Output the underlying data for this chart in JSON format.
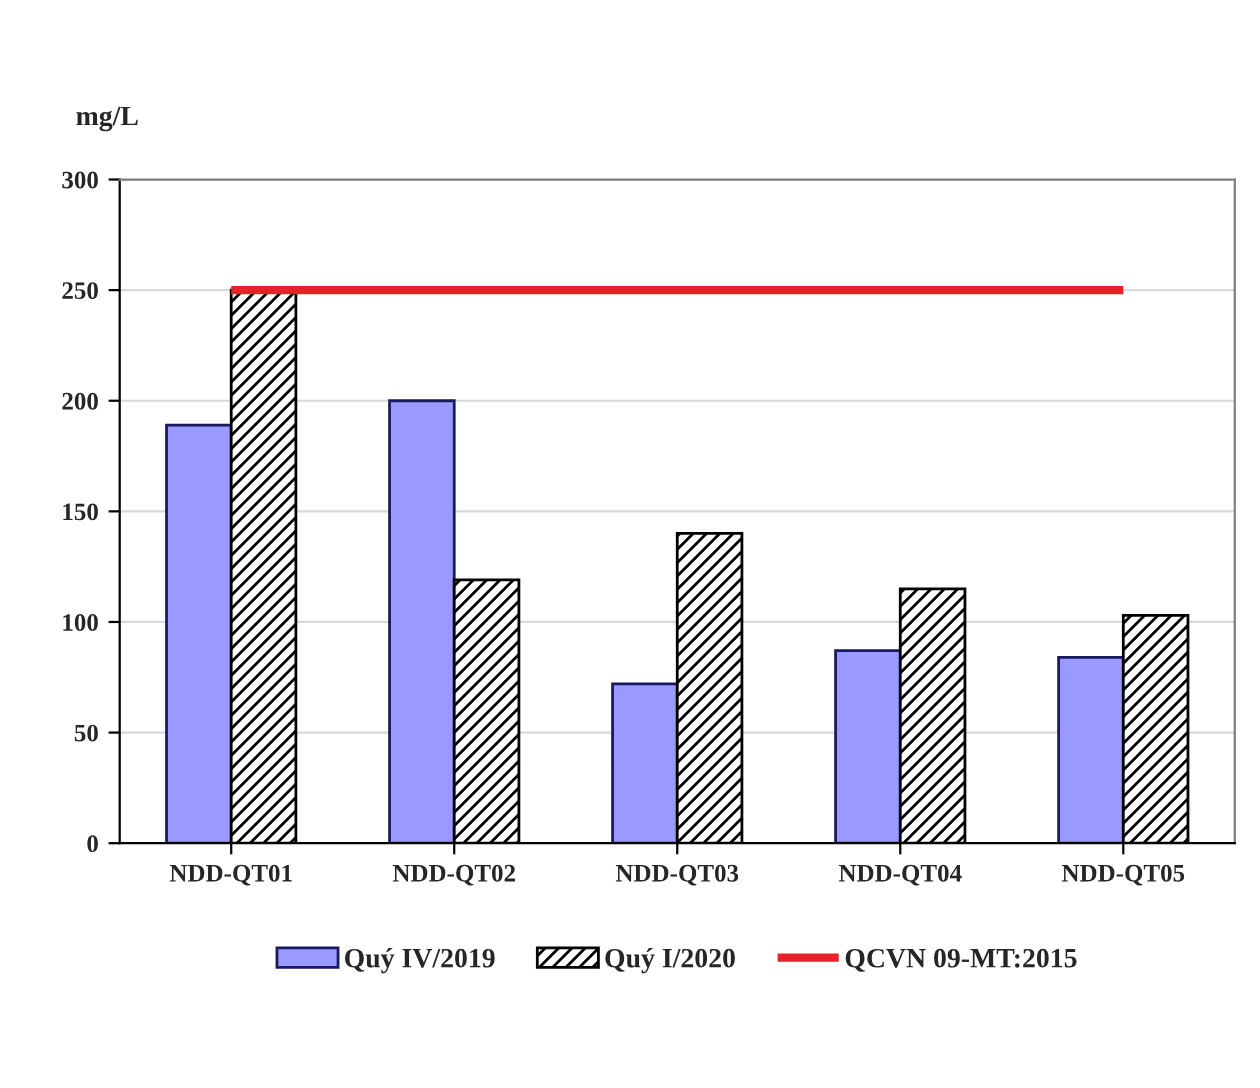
{
  "chart_data": {
    "type": "bar",
    "ylabel": "mg/L",
    "categories": [
      "NDD-QT01",
      "NDD-QT02",
      "NDD-QT03",
      "NDD-QT04",
      "NDD-QT05"
    ],
    "series": [
      {
        "name": "Quý IV/2019",
        "color": "#9999ff",
        "values": [
          189,
          200,
          72,
          87,
          84
        ]
      },
      {
        "name": "Quý I/2020",
        "color": "#000000",
        "values": [
          250,
          119,
          140,
          115,
          103
        ]
      },
      {
        "name": "QCVN 09-MT:2015",
        "type": "line",
        "color": "#e8202a",
        "values": [
          250,
          250,
          250,
          250,
          250
        ]
      }
    ],
    "ylim": [
      0,
      300
    ],
    "yticks": [
      0,
      50,
      100,
      150,
      200,
      250,
      300
    ],
    "grid": "y",
    "legend": "bottom"
  }
}
